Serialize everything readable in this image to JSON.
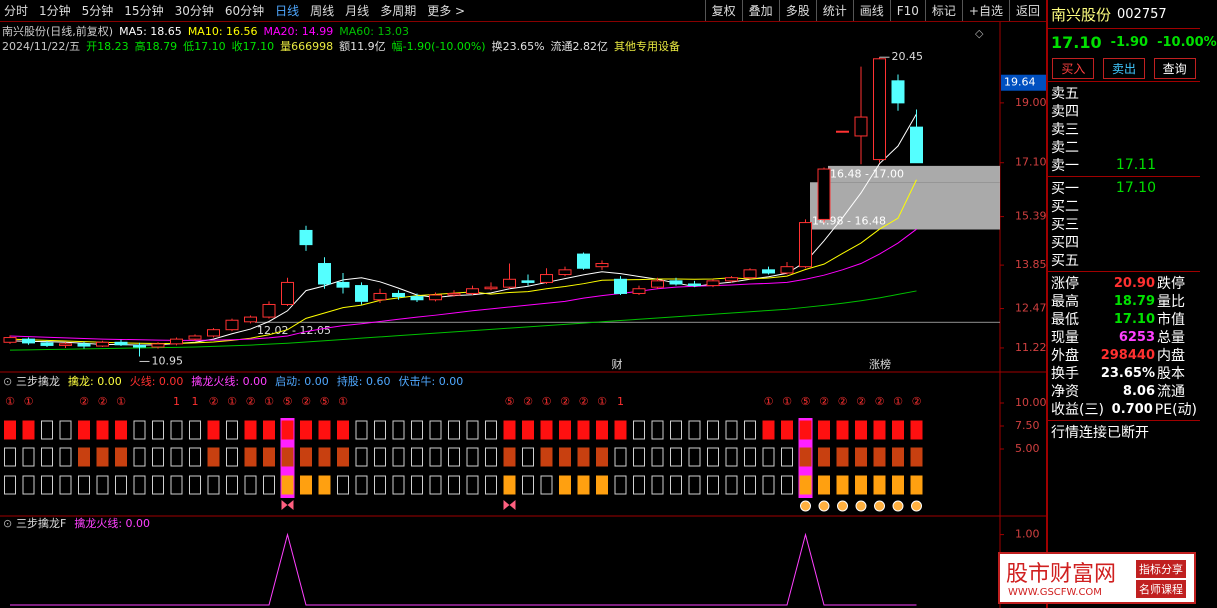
{
  "toolbar": {
    "periods": [
      {
        "text": "分时"
      },
      {
        "text": "1分钟"
      },
      {
        "text": "5分钟"
      },
      {
        "text": "15分钟"
      },
      {
        "text": "30分钟"
      },
      {
        "text": "60分钟"
      },
      {
        "text": "日线",
        "color": "#4fa8ff"
      },
      {
        "text": "周线"
      },
      {
        "text": "月线"
      },
      {
        "text": "多周期"
      },
      {
        "text": "更多 >"
      }
    ],
    "tools": [
      "复权",
      "叠加",
      "多股",
      "统计",
      "画线",
      "F10",
      "标记",
      "+自选",
      "返回"
    ]
  },
  "header": {
    "title": "南兴股份(日线,前复权)",
    "line2": [
      {
        "text": "2024/11/22/五",
        "color": "#c8c8c8"
      },
      {
        "text": "开18.23",
        "color": "#00e000"
      },
      {
        "text": "高18.79",
        "color": "#00e000"
      },
      {
        "text": "低17.10",
        "color": "#00e000"
      },
      {
        "text": "收17.10",
        "color": "#00e000"
      },
      {
        "text": "量666998",
        "color": "#e8e840"
      },
      {
        "text": "额11.9亿",
        "color": "#e0e0e0"
      },
      {
        "text": "幅-1.90(-10.00%)",
        "color": "#00e000"
      },
      {
        "text": "换23.65%",
        "color": "#e0e0e0"
      },
      {
        "text": "流通2.82亿",
        "color": "#e0e0e0"
      },
      {
        "text": "其他专用设备",
        "color": "#e8e840"
      }
    ]
  },
  "chart_data": [
    {
      "type": "candlestick",
      "up_color": "#ff3232",
      "down_color": "#54ffff",
      "open": [
        11.4,
        11.5,
        11.38,
        11.3,
        11.35,
        11.28,
        11.4,
        11.3,
        11.25,
        11.35,
        11.5,
        11.6,
        11.8,
        12.05,
        12.2,
        12.6,
        14.95,
        13.9,
        13.3,
        13.2,
        12.75,
        12.95,
        12.85,
        12.75,
        12.9,
        12.95,
        13.1,
        13.15,
        13.35,
        13.3,
        13.55,
        14.2,
        13.8,
        13.4,
        12.95,
        13.15,
        13.35,
        13.25,
        13.2,
        13.35,
        13.45,
        13.7,
        13.6,
        13.8,
        15.3,
        18.1,
        17.95,
        17.2,
        19.7,
        18.23
      ],
      "high": [
        11.62,
        11.55,
        11.45,
        11.4,
        11.42,
        11.45,
        11.48,
        11.38,
        11.4,
        11.55,
        11.65,
        11.85,
        12.15,
        12.25,
        12.7,
        13.45,
        15.1,
        14.1,
        13.6,
        13.3,
        13.1,
        13.05,
        12.95,
        12.98,
        13.05,
        13.2,
        13.3,
        13.9,
        13.55,
        13.75,
        13.8,
        14.25,
        14.0,
        13.5,
        13.2,
        13.45,
        13.45,
        13.35,
        13.4,
        13.5,
        13.75,
        13.8,
        13.95,
        15.3,
        16.95,
        18.1,
        20.15,
        20.45,
        19.9,
        18.79
      ],
      "low": [
        11.35,
        11.32,
        11.25,
        11.22,
        11.2,
        11.25,
        11.28,
        10.95,
        11.2,
        11.3,
        11.45,
        11.55,
        11.75,
        12.0,
        12.15,
        12.55,
        14.3,
        13.1,
        12.95,
        12.6,
        12.65,
        12.75,
        12.68,
        12.7,
        12.85,
        12.9,
        13.05,
        13.1,
        13.2,
        13.25,
        13.5,
        13.7,
        13.7,
        12.9,
        12.9,
        13.1,
        13.2,
        13.15,
        13.15,
        13.3,
        13.4,
        13.55,
        13.55,
        13.75,
        15.2,
        18.1,
        17.05,
        17.1,
        18.75,
        17.1
      ],
      "close": [
        11.55,
        11.38,
        11.3,
        11.35,
        11.28,
        11.4,
        11.32,
        11.25,
        11.35,
        11.5,
        11.6,
        11.8,
        12.1,
        12.2,
        12.6,
        13.3,
        14.5,
        13.25,
        13.15,
        12.7,
        12.95,
        12.85,
        12.75,
        12.9,
        12.95,
        13.1,
        13.15,
        13.4,
        13.3,
        13.55,
        13.7,
        13.75,
        13.9,
        12.95,
        13.1,
        13.35,
        13.25,
        13.2,
        13.35,
        13.45,
        13.7,
        13.6,
        13.8,
        15.2,
        16.9,
        18.1,
        18.55,
        20.4,
        19.0,
        17.1
      ],
      "series": [
        {
          "label": "MA5: 18.65",
          "color": "#ffffff",
          "values": [
            11.45,
            11.43,
            11.42,
            11.4,
            11.37,
            11.33,
            11.33,
            11.31,
            11.32,
            11.36,
            11.4,
            11.5,
            11.67,
            11.82,
            12.06,
            12.4,
            13.04,
            13.19,
            13.38,
            13.45,
            13.32,
            13.12,
            12.9,
            12.82,
            12.88,
            12.91,
            12.97,
            13.1,
            13.18,
            13.3,
            13.42,
            13.54,
            13.64,
            13.58,
            13.49,
            13.4,
            13.28,
            13.17,
            13.25,
            13.31,
            13.4,
            13.48,
            13.59,
            13.95,
            14.62,
            15.35,
            16.14,
            17.07,
            17.63,
            18.65
          ]
        },
        {
          "label": "MA10: 16.56",
          "color": "#ffff00",
          "values": [
            11.5,
            11.48,
            11.46,
            11.44,
            11.42,
            11.4,
            11.38,
            11.37,
            11.36,
            11.36,
            11.38,
            11.41,
            11.46,
            11.53,
            11.64,
            11.8,
            12.16,
            12.33,
            12.5,
            12.58,
            12.73,
            12.81,
            12.88,
            12.92,
            12.96,
            13.0,
            12.93,
            12.98,
            13.01,
            13.1,
            13.17,
            13.26,
            13.37,
            13.38,
            13.39,
            13.41,
            13.41,
            13.4,
            13.41,
            13.45,
            13.41,
            13.44,
            13.5,
            13.71,
            13.88,
            14.22,
            14.55,
            14.99,
            15.34,
            16.56
          ]
        },
        {
          "label": "MA20: 14.99",
          "color": "#ff00ff",
          "values": [
            11.6,
            11.58,
            11.56,
            11.54,
            11.52,
            11.5,
            11.49,
            11.48,
            11.47,
            11.46,
            11.46,
            11.47,
            11.48,
            11.5,
            11.54,
            11.6,
            11.74,
            11.84,
            11.93,
            11.99,
            12.06,
            12.13,
            12.2,
            12.26,
            12.33,
            12.4,
            12.46,
            12.52,
            12.58,
            12.64,
            12.7,
            12.8,
            12.88,
            12.95,
            13.02,
            13.1,
            13.15,
            13.18,
            13.2,
            13.22,
            13.25,
            13.27,
            13.3,
            13.4,
            13.53,
            13.7,
            13.9,
            14.2,
            14.55,
            14.99
          ]
        },
        {
          "label": "MA60: 13.03",
          "color": "#00c000",
          "values": [
            11.15,
            11.16,
            11.17,
            11.18,
            11.19,
            11.2,
            11.21,
            11.22,
            11.23,
            11.24,
            11.25,
            11.27,
            11.29,
            11.31,
            11.34,
            11.37,
            11.41,
            11.45,
            11.49,
            11.53,
            11.57,
            11.61,
            11.65,
            11.69,
            11.73,
            11.77,
            11.81,
            11.85,
            11.89,
            11.93,
            11.97,
            12.01,
            12.05,
            12.09,
            12.13,
            12.17,
            12.21,
            12.25,
            12.29,
            12.33,
            12.37,
            12.41,
            12.45,
            12.51,
            12.57,
            12.64,
            12.72,
            12.81,
            12.92,
            13.03
          ]
        }
      ],
      "ylim": [
        10.52,
        20.52
      ],
      "yticks": [
        {
          "value": 19,
          "label": "19.00"
        },
        {
          "value": 17.1,
          "label": "17.10"
        },
        {
          "value": 15.39,
          "label": "15.39"
        },
        {
          "value": 13.85,
          "label": "13.85"
        },
        {
          "value": 12.47,
          "label": "12.47"
        },
        {
          "value": 11.22,
          "label": "11.22"
        }
      ],
      "cursor": {
        "value": 19.64,
        "label": "19.64"
      },
      "gaps": [
        {
          "label": "16.48 - 17.00",
          "low": 16.48,
          "high": 17.0
        },
        {
          "label": "14.98 - 16.48",
          "low": 14.98,
          "high": 16.48
        },
        {
          "label": "12.02 - 12.05",
          "low": 12.02,
          "high": 12.05
        }
      ],
      "annotations": [
        {
          "value": 20.45,
          "label": "20.45"
        },
        {
          "value": 10.95,
          "label": "10.95"
        }
      ],
      "events": [
        "财",
        "涨榜"
      ]
    },
    {
      "type": "signal_grid",
      "title": "三步擒龙",
      "legend": [
        {
          "text": "擒龙: 0.00",
          "color": "#ffff40"
        },
        {
          "text": "火线: 0.00",
          "color": "#ff3030"
        },
        {
          "text": "擒龙火线: 0.00",
          "color": "#ff40ff"
        },
        {
          "text": "启动: 0.00",
          "color": "#4fa8ff"
        },
        {
          "text": "持股: 0.60",
          "color": "#4fa8ff"
        },
        {
          "text": "伏击牛: 0.00",
          "color": "#4fa8ff"
        }
      ],
      "signal_color": "#ff3030",
      "signals": [
        "①",
        "①",
        null,
        null,
        "②",
        "②",
        "①",
        null,
        null,
        "1",
        "1",
        "②",
        "①",
        "②",
        "①",
        "⑤",
        "②",
        "⑤",
        "①",
        null,
        null,
        null,
        null,
        null,
        null,
        null,
        null,
        "⑤",
        "②",
        "①",
        "②",
        "②",
        "①",
        "1",
        null,
        null,
        null,
        null,
        null,
        null,
        null,
        "①",
        "①",
        "⑤",
        "②",
        "②",
        "②",
        "②",
        "①",
        "②"
      ],
      "rows": [
        {
          "color": "#ff1010",
          "values": [
            1,
            1,
            0,
            0,
            1,
            1,
            1,
            0,
            0,
            0,
            0,
            1,
            0,
            1,
            1,
            1,
            1,
            1,
            1,
            0,
            0,
            0,
            0,
            0,
            0,
            0,
            0,
            1,
            1,
            1,
            1,
            1,
            1,
            1,
            0,
            0,
            0,
            0,
            0,
            0,
            0,
            1,
            1,
            1,
            1,
            1,
            1,
            1,
            1,
            1
          ]
        },
        {
          "color": "#c84010",
          "values": [
            0,
            0,
            0,
            0,
            1,
            1,
            1,
            0,
            0,
            0,
            0,
            1,
            0,
            1,
            1,
            1,
            1,
            1,
            1,
            0,
            0,
            0,
            0,
            0,
            0,
            0,
            0,
            1,
            0,
            1,
            1,
            1,
            1,
            0,
            0,
            0,
            0,
            0,
            0,
            0,
            0,
            0,
            0,
            1,
            1,
            1,
            1,
            1,
            1,
            1
          ]
        },
        {
          "color": "#ffa010",
          "values": [
            0,
            0,
            0,
            0,
            0,
            0,
            0,
            0,
            0,
            0,
            0,
            0,
            0,
            0,
            0,
            1,
            1,
            1,
            0,
            0,
            0,
            0,
            0,
            0,
            0,
            0,
            0,
            1,
            0,
            0,
            1,
            1,
            1,
            0,
            0,
            0,
            0,
            0,
            0,
            0,
            0,
            0,
            0,
            1,
            1,
            1,
            1,
            1,
            1,
            1
          ]
        }
      ],
      "ylim": [
        -2.17,
        13.15
      ],
      "yticks": [
        {
          "value": 10,
          "label": "10.00"
        },
        {
          "value": 7.5,
          "label": "7.50"
        },
        {
          "value": 5,
          "label": "5.00"
        }
      ]
    },
    {
      "type": "line",
      "title": "三步擒龙F",
      "legend": [
        {
          "text": "擒龙火线: 0.00",
          "color": "#ff40ff"
        }
      ],
      "series": [
        {
          "color": "#ff40ff",
          "values": [
            0,
            0,
            0,
            0,
            0,
            0,
            0,
            0,
            0,
            0,
            0,
            0,
            0,
            0,
            0,
            1,
            0,
            0,
            0,
            0,
            0,
            0,
            0,
            0,
            0,
            0,
            0,
            0,
            0,
            0,
            0,
            0,
            0,
            0,
            0,
            0,
            0,
            0,
            0,
            0,
            0,
            0,
            0,
            1,
            0,
            0,
            0,
            0,
            0,
            0
          ]
        }
      ],
      "ylim": [
        0,
        1.25
      ],
      "yticks": [
        {
          "value": 1,
          "label": "1.00"
        }
      ]
    }
  ],
  "quote": {
    "name": "南兴股份",
    "code": "002757",
    "price": "17.10",
    "change": "-1.90",
    "pct": "-10.00%",
    "price_color": "#00e000",
    "buttons": [
      {
        "text": "买入",
        "color": "#ff4040"
      },
      {
        "text": "卖出",
        "color": "#40c8ff"
      },
      {
        "text": "查询",
        "color": "#ffffff"
      }
    ],
    "sell": [
      {
        "label": "卖五"
      },
      {
        "label": "卖四"
      },
      {
        "label": "卖三"
      },
      {
        "label": "卖二"
      },
      {
        "label": "卖一",
        "price": "17.11"
      }
    ],
    "buy": [
      {
        "label": "买一",
        "price": "17.10"
      },
      {
        "label": "买二"
      },
      {
        "label": "买三"
      },
      {
        "label": "买四"
      },
      {
        "label": "买五"
      }
    ],
    "stats": [
      {
        "label": "涨停",
        "value": "20.90",
        "color": "#ff3030",
        "label2": "跌停"
      },
      {
        "label": "最高",
        "value": "18.79",
        "color": "#00e000",
        "label2": "量比"
      },
      {
        "label": "最低",
        "value": "17.10",
        "color": "#00e000",
        "label2": "市值"
      },
      {
        "label": "现量",
        "value": "6253",
        "color": "#ff40ff",
        "label2": "总量"
      },
      {
        "label": "外盘",
        "value": "298440",
        "color": "#ff3030",
        "label2": "内盘"
      },
      {
        "label": "换手",
        "value": "23.65%",
        "color": "#ffffff",
        "label2": "股本"
      },
      {
        "label": "净资",
        "value": "8.06",
        "color": "#ffffff",
        "label2": "流通"
      },
      {
        "label": "收益(三)",
        "value": "0.700",
        "color": "#ffffff",
        "label2": "PE(动)"
      }
    ],
    "status": "行情连接已断开"
  },
  "watermark": {
    "title": "股市财富网",
    "url": "WWW.GSCFW.COM",
    "tags": [
      "指标分享",
      "名师课程"
    ]
  }
}
